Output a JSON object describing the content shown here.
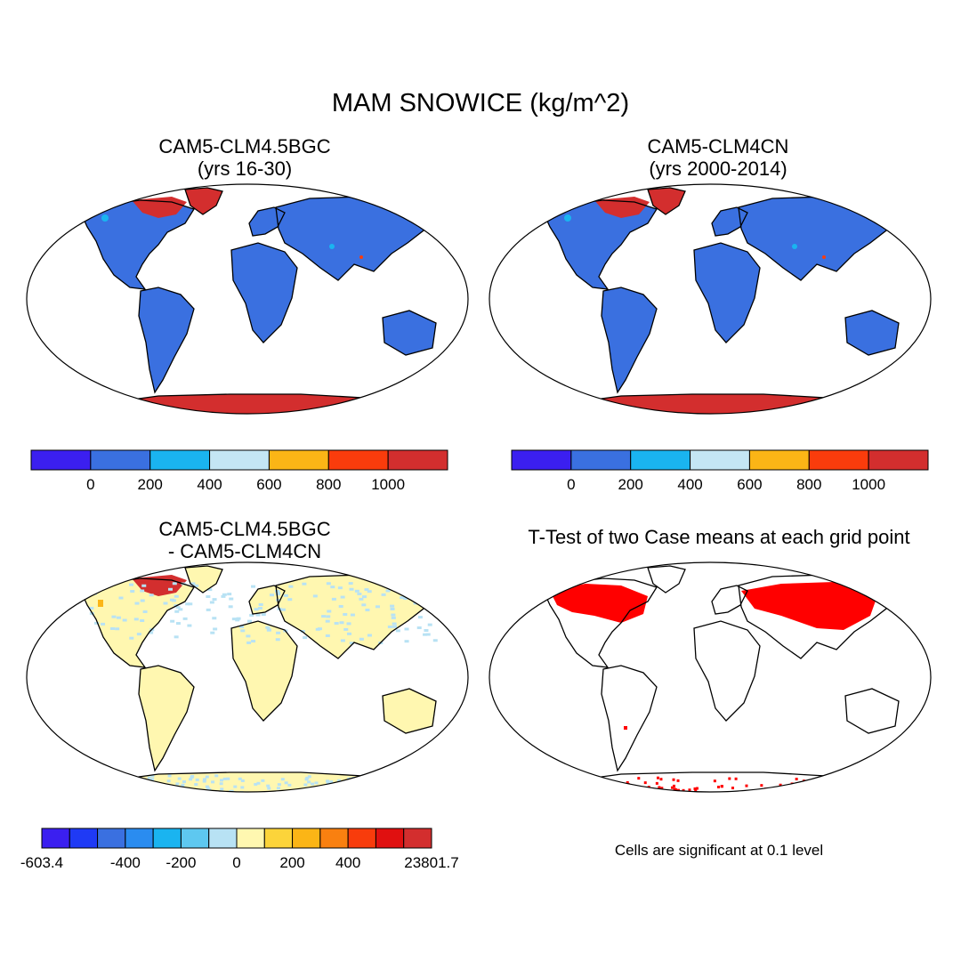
{
  "title": "MAM SNOWICE (kg/m^2)",
  "panels": [
    {
      "id": "tl",
      "title_line1": "CAM5-CLM4.5BGC",
      "title_line2": "(yrs 16-30)"
    },
    {
      "id": "tr",
      "title_line1": "CAM5-CLM4CN",
      "title_line2": "(yrs 2000-2014)"
    },
    {
      "id": "bl",
      "title_line1": "CAM5-CLM4.5BGC",
      "title_line2": "- CAM5-CLM4CN"
    },
    {
      "id": "br",
      "title_line1": "T-Test of two Case means at each grid point",
      "title_line2": ""
    }
  ],
  "colorbar_top": {
    "colors": [
      "#3b1ff0",
      "#3a70e0",
      "#1ab4f0",
      "#c4e6f4",
      "#fbb516",
      "#fa3c0c",
      "#d32e2e"
    ],
    "labels": [
      "0",
      "200",
      "400",
      "600",
      "800",
      "1000"
    ]
  },
  "colorbar_diff": {
    "colors": [
      "#3b1ff0",
      "#1f3af5",
      "#3a70e0",
      "#2a8cf0",
      "#1ab4f0",
      "#5ec8f0",
      "#b8e2f4",
      "#fff7b0",
      "#fcd43a",
      "#fbb516",
      "#f98010",
      "#f83c0c",
      "#e01010",
      "#d32e2e"
    ],
    "labels": [
      "-603.4",
      "-400",
      "-200",
      "0",
      "200",
      "400",
      "23801.7"
    ]
  },
  "ttest_note": "Cells are significant at 0.1 level",
  "legend_colors": {
    "land_snow_low": "#3a70e0",
    "snow_high": "#d32e2e",
    "diff_near_zero": "#fff7b0",
    "significant": "#ff0000"
  }
}
